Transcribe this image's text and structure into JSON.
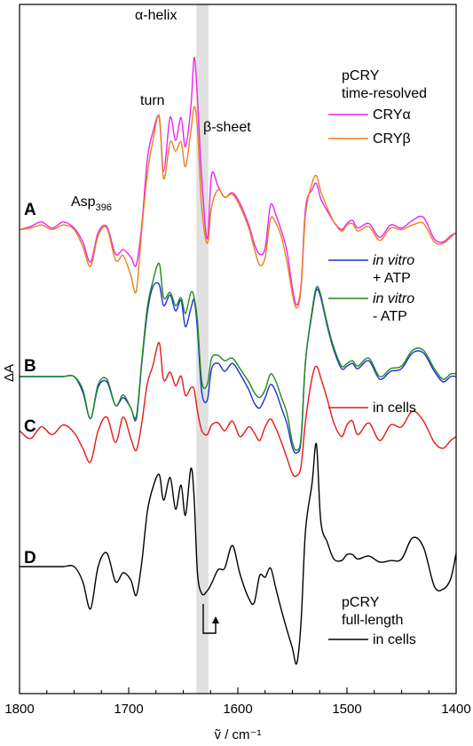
{
  "chart_data": {
    "type": "line",
    "xlabel": "ṽ / cm⁻¹",
    "ylabel": "ΔA",
    "x_range": [
      1800,
      1400
    ],
    "x_reversed": true,
    "x_ticks": [
      "1800",
      "1700",
      "1600",
      "1500",
      "1400"
    ],
    "highlight_band": [
      1638,
      1627
    ],
    "annotations": {
      "alpha_helix": "α-helix",
      "turn": "turn",
      "beta_sheet": "β-sheet",
      "asp": "Asp",
      "asp_sub": "396"
    },
    "panel_labels": [
      "A",
      "B",
      "C",
      "D"
    ],
    "legend": {
      "A_title1": "pCRY",
      "A_title2": "time-resolved",
      "A_alpha": "CRYα",
      "A_beta": "CRYβ",
      "B_vitro_plus_1": "in vitro",
      "B_vitro_plus_2": "+ ATP",
      "B_vitro_minus_1": "in vitro",
      "B_vitro_minus_2": "- ATP",
      "C_cells": "in cells",
      "D_title1": "pCRY",
      "D_title2": "full-length",
      "D_cells": "in cells"
    },
    "colors": {
      "cry_alpha": "#ee22ee",
      "cry_beta": "#e8821e",
      "in_vitro_plus_atp": "#1f2fd6",
      "in_vitro_minus_atp": "#1f8a1f",
      "in_cells": "#e61919",
      "full_length": "#000000",
      "band": "#e0e0e0"
    },
    "series": [
      {
        "name": "CRYα",
        "panel": "A",
        "color": "#ee22ee",
        "x": [
          1800,
          1790,
          1780,
          1770,
          1760,
          1750,
          1742,
          1735,
          1728,
          1720,
          1712,
          1705,
          1698,
          1693,
          1688,
          1683,
          1678,
          1672,
          1668,
          1662,
          1657,
          1652,
          1648,
          1643,
          1640,
          1637,
          1633,
          1628,
          1624,
          1618,
          1612,
          1605,
          1598,
          1590,
          1585,
          1580,
          1575,
          1570,
          1565,
          1560,
          1555,
          1550,
          1546,
          1542,
          1538,
          1532,
          1528,
          1524,
          1518,
          1512,
          1505,
          1500,
          1495,
          1490,
          1480,
          1470,
          1460,
          1450,
          1440,
          1430,
          1420,
          1412,
          1405,
          1400
        ],
        "y": [
          0.2,
          0.4,
          0.7,
          0.3,
          0.7,
          0.3,
          -0.6,
          -1.9,
          0.0,
          0.4,
          -1.4,
          -1.1,
          -1.6,
          -2.1,
          0.5,
          4.7,
          6.5,
          7.5,
          4.0,
          7.5,
          6.0,
          7.5,
          5.6,
          8.2,
          11.4,
          8.7,
          3.5,
          -0.4,
          3.8,
          3.0,
          2.3,
          2.6,
          1.9,
          0.5,
          -0.7,
          -1.4,
          -1.0,
          1.8,
          1.1,
          0.1,
          -1.2,
          -3.6,
          -4.7,
          -3.4,
          1.6,
          2.8,
          3.2,
          2.2,
          1.4,
          0.7,
          0.2,
          0.6,
          0.8,
          0.3,
          0.6,
          -0.3,
          0.5,
          0.3,
          0.8,
          1.0,
          -0.4,
          -0.6,
          -0.2,
          0.0
        ]
      },
      {
        "name": "CRYβ",
        "panel": "A",
        "color": "#e8821e",
        "x": [
          1800,
          1790,
          1780,
          1770,
          1760,
          1750,
          1742,
          1735,
          1728,
          1720,
          1712,
          1705,
          1698,
          1693,
          1688,
          1683,
          1678,
          1672,
          1668,
          1662,
          1657,
          1652,
          1648,
          1643,
          1640,
          1637,
          1633,
          1628,
          1624,
          1618,
          1612,
          1605,
          1598,
          1590,
          1585,
          1580,
          1575,
          1570,
          1565,
          1560,
          1555,
          1550,
          1546,
          1542,
          1538,
          1532,
          1528,
          1524,
          1518,
          1512,
          1505,
          1500,
          1495,
          1490,
          1480,
          1470,
          1460,
          1450,
          1440,
          1430,
          1420,
          1412,
          1405,
          1400
        ],
        "y": [
          0.2,
          0.3,
          0.5,
          0.2,
          0.5,
          0.2,
          -0.9,
          -2.2,
          -0.2,
          0.3,
          -1.8,
          -1.5,
          -2.8,
          -3.8,
          0.2,
          3.8,
          5.9,
          7.6,
          3.5,
          5.9,
          5.3,
          5.9,
          4.3,
          6.6,
          8.2,
          6.8,
          1.6,
          -0.7,
          1.7,
          2.8,
          2.3,
          2.5,
          1.7,
          0.3,
          -1.0,
          -2.1,
          -1.6,
          0.9,
          0.6,
          -0.3,
          -1.9,
          -4.0,
          -4.9,
          -3.6,
          1.2,
          3.2,
          3.7,
          2.7,
          1.6,
          0.7,
          0.1,
          0.5,
          0.6,
          0.1,
          0.4,
          -0.5,
          0.3,
          0.2,
          0.5,
          0.6,
          -0.6,
          -0.7,
          -0.3,
          0.0
        ]
      },
      {
        "name": "in vitro + ATP",
        "panel": "B",
        "color": "#1f2fd6",
        "x": [
          1800,
          1790,
          1780,
          1770,
          1760,
          1750,
          1742,
          1735,
          1728,
          1720,
          1712,
          1705,
          1698,
          1693,
          1688,
          1683,
          1678,
          1672,
          1668,
          1662,
          1657,
          1652,
          1648,
          1643,
          1640,
          1637,
          1633,
          1628,
          1624,
          1618,
          1612,
          1605,
          1598,
          1590,
          1585,
          1580,
          1575,
          1570,
          1565,
          1560,
          1555,
          1550,
          1546,
          1542,
          1538,
          1532,
          1528,
          1524,
          1518,
          1512,
          1505,
          1500,
          1495,
          1490,
          1480,
          1470,
          1460,
          1450,
          1440,
          1430,
          1420,
          1412,
          1405,
          1400
        ],
        "y": [
          0.0,
          0.0,
          0.0,
          0.0,
          0.0,
          0.0,
          -0.6,
          -1.6,
          -0.4,
          -0.2,
          -1.1,
          -0.8,
          -1.2,
          -1.6,
          0.5,
          2.4,
          3.4,
          3.5,
          2.7,
          3.1,
          2.5,
          2.9,
          1.9,
          2.6,
          2.9,
          1.8,
          -0.6,
          -0.9,
          0.3,
          0.5,
          0.2,
          0.5,
          0.1,
          -0.5,
          -1.0,
          -1.2,
          -0.8,
          -0.3,
          -0.6,
          -1.2,
          -1.8,
          -2.7,
          -2.9,
          -2.4,
          0.6,
          2.4,
          3.3,
          3.0,
          1.9,
          1.0,
          0.3,
          0.4,
          0.5,
          0.3,
          0.6,
          -0.1,
          0.2,
          0.3,
          0.9,
          0.9,
          0.2,
          -0.2,
          0.0,
          0.0
        ]
      },
      {
        "name": "in vitro - ATP",
        "panel": "B",
        "color": "#1f8a1f",
        "x": [
          1800,
          1790,
          1780,
          1770,
          1760,
          1750,
          1742,
          1735,
          1728,
          1720,
          1712,
          1705,
          1698,
          1693,
          1688,
          1683,
          1678,
          1672,
          1668,
          1662,
          1657,
          1652,
          1648,
          1643,
          1640,
          1637,
          1633,
          1628,
          1624,
          1618,
          1612,
          1605,
          1598,
          1590,
          1585,
          1580,
          1575,
          1570,
          1565,
          1560,
          1555,
          1550,
          1546,
          1542,
          1538,
          1532,
          1528,
          1524,
          1518,
          1512,
          1505,
          1500,
          1495,
          1490,
          1480,
          1470,
          1460,
          1450,
          1440,
          1430,
          1420,
          1412,
          1405,
          1400
        ],
        "y": [
          0.0,
          0.0,
          0.0,
          0.0,
          0.0,
          0.0,
          -0.5,
          -1.6,
          -0.3,
          -0.1,
          -1.1,
          -0.7,
          -1.2,
          -1.5,
          0.6,
          2.6,
          3.6,
          4.3,
          3.0,
          3.2,
          2.7,
          3.0,
          2.4,
          3.2,
          3.0,
          2.1,
          -0.2,
          -0.3,
          0.7,
          0.8,
          0.6,
          0.7,
          0.3,
          -0.2,
          -0.6,
          -0.8,
          -0.5,
          0.1,
          -0.2,
          -0.8,
          -1.4,
          -2.5,
          -2.8,
          -2.3,
          0.6,
          2.5,
          3.4,
          3.1,
          2.0,
          1.1,
          0.4,
          0.5,
          0.6,
          0.4,
          0.7,
          0.0,
          0.3,
          0.4,
          1.0,
          1.0,
          0.3,
          -0.1,
          0.1,
          0.1
        ]
      },
      {
        "name": "in cells",
        "panel": "C",
        "color": "#e61919",
        "x": [
          1800,
          1790,
          1780,
          1770,
          1760,
          1750,
          1742,
          1735,
          1728,
          1720,
          1712,
          1705,
          1698,
          1693,
          1688,
          1683,
          1678,
          1672,
          1668,
          1662,
          1657,
          1652,
          1648,
          1643,
          1640,
          1637,
          1633,
          1628,
          1624,
          1618,
          1612,
          1605,
          1598,
          1590,
          1585,
          1580,
          1575,
          1570,
          1565,
          1560,
          1555,
          1550,
          1546,
          1542,
          1538,
          1532,
          1528,
          1524,
          1518,
          1512,
          1505,
          1500,
          1495,
          1490,
          1480,
          1470,
          1460,
          1450,
          1440,
          1430,
          1420,
          1412,
          1405,
          1400
        ],
        "y": [
          0.0,
          -0.4,
          0.2,
          -0.2,
          0.3,
          -0.1,
          -0.9,
          -1.6,
          0.0,
          0.7,
          -0.6,
          0.7,
          -0.4,
          -1.0,
          0.4,
          2.4,
          3.3,
          4.5,
          2.6,
          3.0,
          2.3,
          2.8,
          1.8,
          2.2,
          2.1,
          1.0,
          0.0,
          -0.2,
          0.3,
          0.4,
          0.0,
          0.5,
          -0.3,
          0.2,
          -0.1,
          -0.5,
          0.2,
          0.6,
          0.1,
          -0.6,
          -1.4,
          -2.2,
          -2.3,
          -1.8,
          0.5,
          2.7,
          3.3,
          2.7,
          1.6,
          0.4,
          -0.3,
          0.3,
          0.5,
          -0.2,
          0.4,
          -0.5,
          0.3,
          0.2,
          1.0,
          0.5,
          -0.6,
          -0.9,
          -0.5,
          -0.3
        ]
      },
      {
        "name": "full-length in cells",
        "panel": "D",
        "color": "#000000",
        "x": [
          1800,
          1790,
          1780,
          1770,
          1760,
          1750,
          1742,
          1735,
          1728,
          1720,
          1712,
          1705,
          1698,
          1693,
          1688,
          1683,
          1678,
          1672,
          1668,
          1662,
          1657,
          1652,
          1648,
          1643,
          1640,
          1637,
          1633,
          1628,
          1624,
          1618,
          1612,
          1605,
          1598,
          1590,
          1585,
          1580,
          1575,
          1570,
          1565,
          1560,
          1555,
          1550,
          1546,
          1542,
          1538,
          1532,
          1528,
          1524,
          1518,
          1512,
          1505,
          1500,
          1495,
          1490,
          1480,
          1470,
          1460,
          1450,
          1440,
          1430,
          1420,
          1412,
          1405,
          1400
        ],
        "y": [
          0.0,
          0.0,
          0.0,
          0.0,
          0.0,
          0.0,
          -1.0,
          -2.8,
          0.0,
          0.9,
          -1.0,
          -0.4,
          -0.9,
          -1.9,
          0.3,
          3.6,
          5.2,
          6.1,
          4.4,
          5.9,
          3.8,
          5.4,
          3.4,
          6.5,
          4.5,
          -0.4,
          -1.8,
          -1.6,
          -1.1,
          -0.2,
          -0.1,
          1.4,
          -0.5,
          -2.1,
          -2.4,
          -0.6,
          -0.7,
          -0.1,
          -1.5,
          -2.9,
          -4.2,
          -5.4,
          -6.4,
          -3.6,
          2.4,
          5.5,
          8.1,
          3.0,
          1.6,
          0.5,
          0.4,
          0.8,
          0.8,
          0.5,
          0.7,
          0.3,
          0.4,
          0.5,
          1.9,
          1.3,
          -1.3,
          -1.5,
          -0.8,
          0.9
        ]
      }
    ]
  }
}
